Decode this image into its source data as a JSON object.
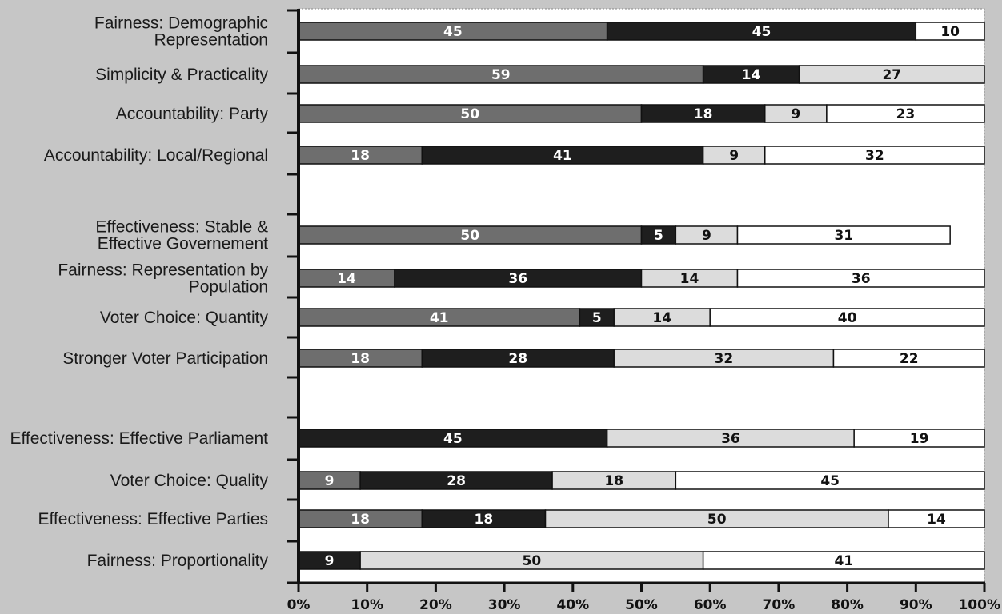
{
  "chart_data": {
    "type": "bar",
    "orientation": "horizontal",
    "stacked": true,
    "title": "",
    "xlabel": "",
    "ylabel": "",
    "xlim": [
      0,
      100
    ],
    "x_ticks": [
      "0%",
      "10%",
      "20%",
      "30%",
      "40%",
      "50%",
      "60%",
      "70%",
      "80%",
      "90%",
      "100%"
    ],
    "grid": false,
    "legend": "none",
    "segment_colors": [
      "#6e6e6e",
      "#1e1e1e",
      "#dcdcdc",
      "#ffffff"
    ],
    "segment_text_colors": [
      "#ffffff",
      "#ffffff",
      "#111111",
      "#111111"
    ],
    "rows": [
      {
        "category": [
          "Fairness: Demographic",
          "Representation"
        ],
        "values": [
          45,
          45,
          null,
          10
        ]
      },
      {
        "category": [
          "Simplicity & Practicality"
        ],
        "values": [
          59,
          14,
          27,
          null
        ]
      },
      {
        "category": [
          "Accountability: Party"
        ],
        "values": [
          50,
          18,
          9,
          23
        ]
      },
      {
        "category": [
          "Accountability: Local/Regional"
        ],
        "values": [
          18,
          41,
          9,
          32
        ]
      },
      {
        "category": [
          "Effectiveness: Stable &",
          "Effective Governement"
        ],
        "values": [
          50,
          5,
          9,
          31
        ]
      },
      {
        "category": [
          "Fairness: Representation by",
          "Population"
        ],
        "values": [
          14,
          36,
          14,
          36
        ]
      },
      {
        "category": [
          "Voter Choice: Quantity"
        ],
        "values": [
          41,
          5,
          14,
          40
        ]
      },
      {
        "category": [
          "Stronger Voter Participation"
        ],
        "values": [
          18,
          28,
          32,
          22
        ]
      },
      {
        "category": [
          "Effectiveness: Effective Parliament"
        ],
        "values": [
          null,
          45,
          36,
          19
        ]
      },
      {
        "category": [
          "Voter Choice: Quality"
        ],
        "values": [
          9,
          28,
          18,
          45
        ]
      },
      {
        "category": [
          "Effectiveness: Effective Parties"
        ],
        "values": [
          18,
          18,
          50,
          14
        ]
      },
      {
        "category": [
          "Fairness: Proportionality"
        ],
        "values": [
          null,
          9,
          50,
          41
        ]
      }
    ]
  }
}
